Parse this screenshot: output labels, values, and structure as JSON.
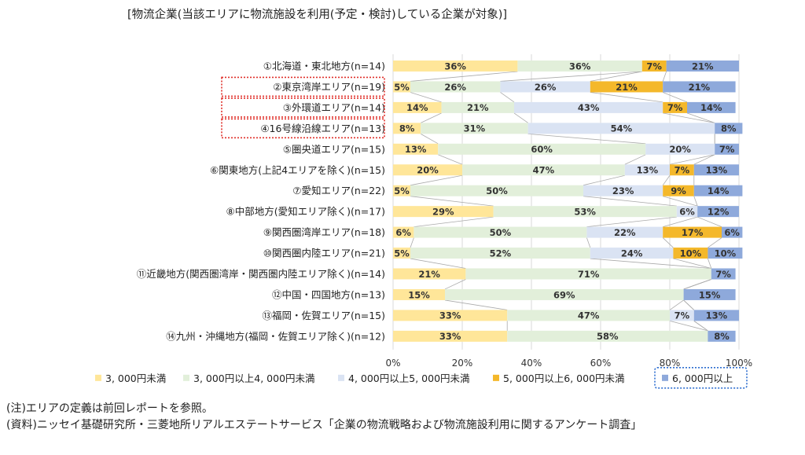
{
  "header_note": "[物流企業(当該エリアに物流施設を利用(予定・検討)している企業が対象)]",
  "colors": {
    "lt3000": "#FFE699",
    "3000to4000": "#E2EFDA",
    "4000to5000": "#DAE3F3",
    "5000to6000": "#F4B82B",
    "ge6000": "#8EA9DB",
    "highlight_red": "#E0302A",
    "highlight_blue": "#2F6FD0"
  },
  "chart_data": {
    "type": "bar",
    "orientation": "horizontal",
    "stacked": "percent",
    "categories": [
      "①北海道・東北地方(n=14)",
      "②東京湾岸エリア(n=19)",
      "③外環道エリア(n=14)",
      "④16号線沿線エリア(n=13)",
      "⑤圏央道エリア(n=15)",
      "⑥関東地方(上記4エリアを除く)(n=15)",
      "⑦愛知エリア(n=22)",
      "⑧中部地方(愛知エリア除く)(n=17)",
      "⑨関西圏湾岸エリア(n=18)",
      "⑩関西圏内陸エリア(n=21)",
      "⑪近畿地方(関西圏湾岸・関西圏内陸エリア除く)(n=14)",
      "⑫中国・四国地方(n=13)",
      "⑬福岡・佐賀エリア(n=15)",
      "⑭九州・沖縄地方(福岡・佐賀エリア除く)(n=12)"
    ],
    "series": [
      {
        "name": "3,000円未満",
        "values": [
          36,
          5,
          14,
          8,
          13,
          20,
          5,
          29,
          6,
          5,
          21,
          15,
          33,
          33
        ]
      },
      {
        "name": "3,000円以上4,000円未満",
        "values": [
          36,
          26,
          21,
          31,
          60,
          47,
          50,
          53,
          50,
          52,
          71,
          69,
          47,
          58
        ]
      },
      {
        "name": "4,000円以上5,000円未満",
        "values": [
          0,
          26,
          43,
          54,
          20,
          13,
          23,
          6,
          22,
          24,
          0,
          0,
          7,
          0
        ]
      },
      {
        "name": "5,000円以上6,000円未満",
        "values": [
          7,
          21,
          7,
          0,
          0,
          7,
          9,
          0,
          17,
          10,
          0,
          0,
          0,
          0
        ]
      },
      {
        "name": "6,000円以上",
        "values": [
          21,
          21,
          14,
          8,
          7,
          13,
          14,
          12,
          6,
          10,
          7,
          15,
          13,
          8
        ]
      }
    ],
    "legend_labels": [
      "3, 000円未満",
      "3, 000円以上4, 000円未満",
      "4, 000円以上5, 000円未満",
      "5, 000円以上6, 000円未満",
      "6, 000円以上"
    ],
    "xlim": [
      0,
      100
    ],
    "x_ticks": [
      "0%",
      "20%",
      "40%",
      "60%",
      "80%",
      "100%"
    ],
    "legend_position": "bottom",
    "highlighted_categories": [
      1,
      2,
      3
    ],
    "highlighted_legend": 4
  },
  "footnotes": {
    "note": "(注)エリアの定義は前回レポートを参照。",
    "source": "(資料)ニッセイ基礎研究所・三菱地所リアルエステートサービス「企業の物流戦略および物流施設利用に関するアンケート調査」"
  }
}
